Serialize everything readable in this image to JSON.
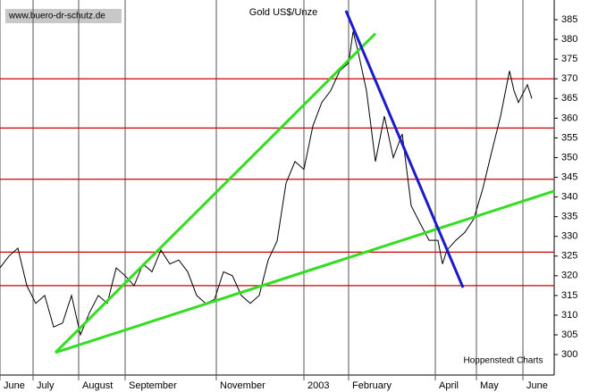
{
  "chart_data": {
    "type": "line",
    "title": "Gold US$/Unze",
    "watermark": "www.buero-dr-schutz.de",
    "source": "Hoppenstedt Charts",
    "x": [
      0,
      1,
      2,
      3,
      4,
      5,
      6,
      7,
      8,
      9,
      10,
      11,
      12,
      13,
      14,
      15,
      16,
      17,
      18,
      19,
      20,
      21,
      22,
      23,
      24,
      25,
      26,
      27,
      28,
      29,
      30,
      31,
      32,
      33,
      34,
      35,
      36,
      37,
      38,
      39,
      39.5,
      40,
      41,
      42,
      43,
      44,
      45,
      46,
      47,
      48,
      49,
      49.5,
      50,
      51,
      52,
      53,
      54,
      55,
      56,
      57,
      57.5,
      58,
      59,
      59.5
    ],
    "series": [
      {
        "name": "Gold",
        "color": "#000000",
        "values": [
          322,
          325,
          327,
          317.5,
          313,
          315,
          307,
          308,
          315,
          305,
          310.6,
          315,
          313,
          322,
          320,
          317.5,
          323,
          321,
          326.5,
          323,
          324,
          321,
          315,
          313,
          314,
          321,
          320,
          315,
          313,
          315,
          324,
          328.8,
          343.5,
          349,
          347,
          358,
          364,
          367,
          372,
          374,
          382,
          377.5,
          367,
          349,
          360.5,
          350,
          356,
          337.8,
          333.3,
          329,
          329,
          323,
          326.5,
          329,
          331,
          334.4,
          342,
          351.4,
          360.5,
          372,
          367,
          364,
          368.5,
          365
        ]
      }
    ],
    "levels": {
      "color": "#cc0000",
      "values": [
        370,
        357.5,
        344.5,
        326,
        317.5
      ]
    },
    "trendlines": [
      {
        "color": "#33dd22",
        "x": [
          6.2,
          42
        ],
        "values": [
          300.5,
          381.5
        ]
      },
      {
        "color": "#33dd22",
        "x": [
          6.2,
          62
        ],
        "values": [
          300.5,
          341.5
        ]
      },
      {
        "color": "#1a1acc",
        "x": [
          38.7,
          51.8
        ],
        "values": [
          387.3,
          317
        ]
      }
    ],
    "xlim": [
      0,
      62
    ],
    "xticks": [
      {
        "value": 0,
        "label": "June"
      },
      {
        "value": 3.7,
        "label": "July"
      },
      {
        "value": 8.8,
        "label": "August"
      },
      {
        "value": 14,
        "label": "September"
      },
      {
        "value": 24.2,
        "label": "November"
      },
      {
        "value": 34,
        "label": "2003"
      },
      {
        "value": 39,
        "label": "February"
      },
      {
        "value": 48.7,
        "label": "April"
      },
      {
        "value": 53.3,
        "label": "May"
      },
      {
        "value": 58.5,
        "label": "June"
      }
    ],
    "ylim": [
      294.8,
      390
    ],
    "yticks": [
      300,
      305,
      310,
      315,
      320,
      325,
      330,
      335,
      340,
      345,
      350,
      355,
      360,
      365,
      370,
      375,
      380,
      385
    ]
  }
}
